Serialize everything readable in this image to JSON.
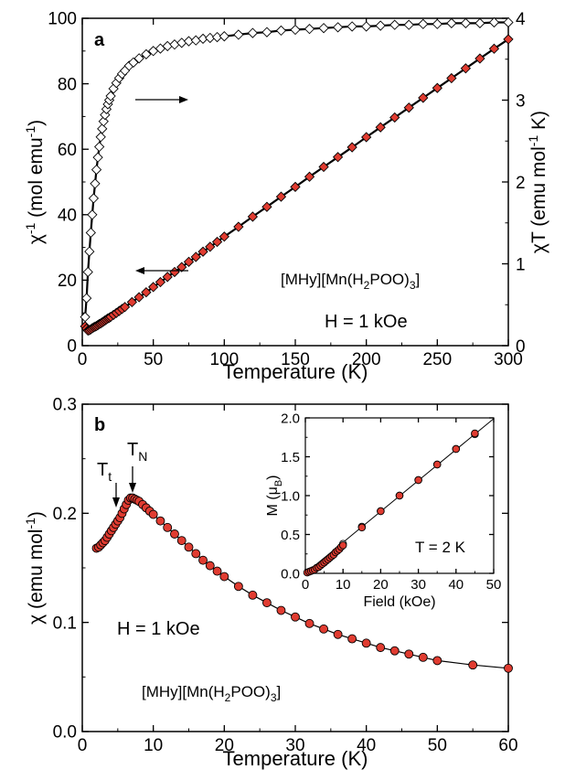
{
  "chart_data": [
    {
      "panel_label": "a",
      "type": "scatter",
      "xlabel": "Temperature (K)",
      "xlim": [
        0,
        300
      ],
      "xticks": [
        0,
        50,
        100,
        150,
        200,
        250,
        300
      ],
      "ylabel_left": "χ-1 (mol emu-1)",
      "ylim_left": [
        0,
        100
      ],
      "yticks_left": [
        0,
        20,
        40,
        60,
        80,
        100
      ],
      "ylabel_right": "χT (emu mol-1 K)",
      "ylim_right": [
        0,
        4
      ],
      "yticks_right": [
        0,
        1,
        2,
        3,
        4
      ],
      "compound_label": "[MHy][Mn(H2POO)3]",
      "field_label": "H = 1 kOe",
      "series": [
        {
          "axis": "left",
          "marker": "filled-diamond",
          "color": "#e03c31",
          "x": [
            2,
            3,
            4,
            5,
            6,
            7,
            8,
            9,
            10,
            11,
            12,
            13,
            14,
            15,
            16,
            17,
            18,
            19,
            20,
            22,
            24,
            26,
            28,
            30,
            35,
            40,
            45,
            50,
            55,
            60,
            65,
            70,
            75,
            80,
            85,
            90,
            95,
            100,
            110,
            120,
            130,
            140,
            150,
            160,
            170,
            180,
            190,
            200,
            210,
            220,
            230,
            240,
            250,
            260,
            270,
            280,
            290,
            300
          ],
          "y": [
            5.9,
            5.2,
            4.6,
            4.7,
            5.0,
            5.3,
            5.6,
            5.8,
            6.0,
            6.3,
            6.6,
            6.8,
            7.1,
            7.4,
            7.7,
            8.0,
            8.3,
            8.5,
            8.8,
            9.4,
            10.0,
            10.6,
            11.2,
            11.8,
            13.3,
            14.8,
            16.3,
            17.9,
            19.4,
            21.0,
            22.5,
            24.0,
            25.6,
            27.1,
            28.7,
            30.2,
            31.7,
            33.3,
            36.3,
            39.4,
            42.4,
            45.5,
            48.5,
            51.6,
            54.6,
            57.6,
            60.6,
            63.7,
            66.7,
            69.7,
            72.7,
            75.7,
            78.7,
            81.7,
            84.7,
            87.7,
            90.7,
            93.6
          ]
        },
        {
          "axis": "right",
          "marker": "open-diamond",
          "color": "#000000",
          "x": [
            2,
            3,
            4,
            5,
            6,
            7,
            8,
            9,
            10,
            11,
            12,
            13,
            14,
            15,
            16,
            17,
            18,
            19,
            20,
            22,
            24,
            26,
            28,
            30,
            33,
            36,
            40,
            45,
            50,
            55,
            60,
            65,
            70,
            75,
            80,
            85,
            90,
            95,
            100,
            110,
            120,
            130,
            140,
            150,
            160,
            170,
            180,
            190,
            200,
            210,
            220,
            230,
            240,
            250,
            260,
            270,
            280,
            290,
            300
          ],
          "y": [
            0.35,
            0.58,
            0.9,
            1.15,
            1.38,
            1.6,
            1.8,
            1.98,
            2.15,
            2.3,
            2.43,
            2.55,
            2.65,
            2.74,
            2.82,
            2.89,
            2.95,
            3.0,
            3.05,
            3.14,
            3.21,
            3.27,
            3.32,
            3.36,
            3.42,
            3.46,
            3.51,
            3.56,
            3.6,
            3.63,
            3.66,
            3.68,
            3.7,
            3.72,
            3.73,
            3.75,
            3.76,
            3.77,
            3.78,
            3.8,
            3.82,
            3.83,
            3.85,
            3.86,
            3.87,
            3.88,
            3.89,
            3.9,
            3.9,
            3.91,
            3.92,
            3.92,
            3.93,
            3.93,
            3.94,
            3.94,
            3.94,
            3.95,
            3.95
          ]
        }
      ]
    },
    {
      "panel_label": "b",
      "type": "scatter",
      "xlabel": "Temperature (K)",
      "xlim": [
        0,
        60
      ],
      "xticks": [
        0,
        10,
        20,
        30,
        40,
        50,
        60
      ],
      "ylabel": "χ (emu mol-1)",
      "ylim": [
        0,
        0.3
      ],
      "yticks": [
        0.0,
        0.1,
        0.2,
        0.3
      ],
      "compound_label": "[MHy][Mn(H2POO)3]",
      "field_label": "H = 1 kOe",
      "annotations": [
        {
          "text": "Tt",
          "x": 4.5
        },
        {
          "text": "TN",
          "x": 6.8
        }
      ],
      "series": [
        {
          "marker": "filled-circle",
          "color": "#e03c31",
          "x": [
            2,
            2.3,
            2.6,
            2.9,
            3.2,
            3.5,
            3.8,
            4.1,
            4.4,
            4.7,
            5.0,
            5.3,
            5.6,
            5.9,
            6.2,
            6.5,
            6.8,
            7.1,
            7.4,
            7.7,
            8.0,
            8.5,
            9,
            9.5,
            10,
            11,
            12,
            13,
            14,
            15,
            16,
            17,
            18,
            19,
            20,
            22,
            24,
            26,
            28,
            30,
            32,
            34,
            36,
            38,
            40,
            42,
            44,
            46,
            48,
            50,
            55,
            60
          ],
          "y": [
            0.168,
            0.169,
            0.171,
            0.173,
            0.175,
            0.178,
            0.181,
            0.184,
            0.187,
            0.19,
            0.193,
            0.196,
            0.2,
            0.204,
            0.208,
            0.212,
            0.214,
            0.214,
            0.213,
            0.212,
            0.211,
            0.208,
            0.205,
            0.202,
            0.199,
            0.193,
            0.187,
            0.181,
            0.175,
            0.169,
            0.163,
            0.157,
            0.152,
            0.147,
            0.142,
            0.133,
            0.125,
            0.118,
            0.111,
            0.105,
            0.099,
            0.094,
            0.089,
            0.085,
            0.081,
            0.077,
            0.074,
            0.071,
            0.068,
            0.065,
            0.061,
            0.058
          ]
        }
      ]
    },
    {
      "panel_label": "inset",
      "type": "scatter",
      "xlabel": "Field (kOe)",
      "xlim": [
        0,
        50
      ],
      "xticks": [
        0,
        10,
        20,
        30,
        40,
        50
      ],
      "ylabel": "M (μB)",
      "ylim": [
        0,
        2.0
      ],
      "yticks": [
        0.0,
        0.5,
        1.0,
        1.5,
        2.0
      ],
      "temperature_label": "T = 2 K",
      "series": [
        {
          "marker": "filled-circle",
          "color": "#e03c31",
          "x": [
            0.5,
            1,
            1.5,
            2,
            2.5,
            3,
            3.5,
            4,
            4.5,
            5,
            5.5,
            6,
            6.5,
            7,
            7.5,
            8,
            8.5,
            9,
            9.5,
            10,
            15,
            20,
            25,
            30,
            35,
            40,
            45
          ],
          "y": [
            0.01,
            0.02,
            0.03,
            0.04,
            0.05,
            0.07,
            0.08,
            0.1,
            0.12,
            0.14,
            0.16,
            0.18,
            0.2,
            0.22,
            0.24,
            0.27,
            0.29,
            0.31,
            0.34,
            0.36,
            0.59,
            0.8,
            1.0,
            1.2,
            1.4,
            1.6,
            1.8
          ]
        },
        {
          "marker": "open-circle",
          "color": "#000000",
          "x": [
            5,
            10,
            15,
            20,
            25,
            30,
            35,
            40,
            45
          ],
          "y": [
            0.14,
            0.38,
            0.6,
            0.8,
            1.0,
            1.2,
            1.4,
            1.6,
            1.79
          ]
        }
      ]
    }
  ]
}
